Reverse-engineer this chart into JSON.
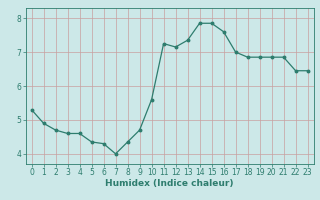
{
  "x": [
    0,
    1,
    2,
    3,
    4,
    5,
    6,
    7,
    8,
    9,
    10,
    11,
    12,
    13,
    14,
    15,
    16,
    17,
    18,
    19,
    20,
    21,
    22,
    23
  ],
  "y": [
    5.3,
    4.9,
    4.7,
    4.6,
    4.6,
    4.35,
    4.3,
    4.0,
    4.35,
    4.7,
    5.6,
    7.25,
    7.15,
    7.35,
    7.85,
    7.85,
    7.6,
    7.0,
    6.85,
    6.85,
    6.85,
    6.85,
    6.45,
    6.45
  ],
  "line_color": "#2e7d6e",
  "marker": "o",
  "markersize": 1.8,
  "linewidth": 0.9,
  "xlabel": "Humidex (Indice chaleur)",
  "ylim": [
    3.7,
    8.3
  ],
  "xlim": [
    -0.5,
    23.5
  ],
  "yticks": [
    4,
    5,
    6,
    7,
    8
  ],
  "xticks": [
    0,
    1,
    2,
    3,
    4,
    5,
    6,
    7,
    8,
    9,
    10,
    11,
    12,
    13,
    14,
    15,
    16,
    17,
    18,
    19,
    20,
    21,
    22,
    23
  ],
  "bg_color": "#cce8e8",
  "grid_color": "#c8a0a0",
  "xlabel_fontsize": 6.5,
  "tick_fontsize": 5.5,
  "tick_color": "#2e7d6e"
}
